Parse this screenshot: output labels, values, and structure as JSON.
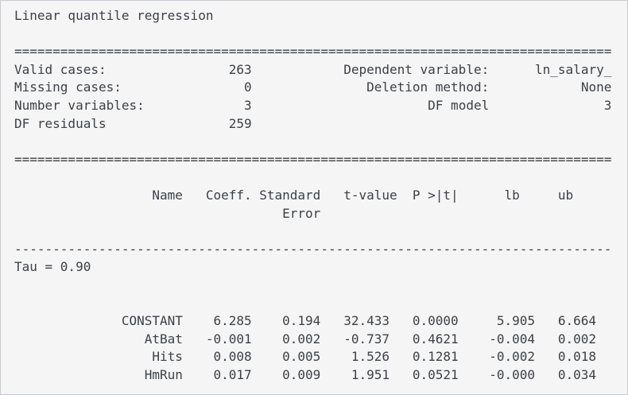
{
  "report": {
    "title": "Linear quantile regression",
    "dividers": {
      "equals": "==============================================================================",
      "dashes": "------------------------------------------------------------------------------"
    },
    "summary": {
      "rows": [
        {
          "left_label": "Valid cases:",
          "left_value": "263",
          "right_label": "Dependent variable:",
          "right_value": "ln_salary_"
        },
        {
          "left_label": "Missing cases:",
          "left_value": "0",
          "right_label": "Deletion method:",
          "right_value": "None"
        },
        {
          "left_label": "Number variables:",
          "left_value": "3",
          "right_label": "DF model",
          "right_value": "3"
        },
        {
          "left_label": "DF residuals",
          "left_value": "259",
          "right_label": "",
          "right_value": ""
        }
      ]
    },
    "coefficients": {
      "headers": {
        "name": "Name",
        "coeff": "Coeff.",
        "std_error_line1": "Standard",
        "std_error_line2": "Error",
        "t_value": "t-value",
        "p_value": "P >|t|",
        "lb": "lb",
        "ub": "ub"
      },
      "tau_label": "Tau = 0.90",
      "rows": [
        {
          "name": "CONSTANT",
          "coeff": "6.285",
          "std_error": "0.194",
          "t_value": "32.433",
          "p_value": "0.0000",
          "lb": "5.905",
          "ub": "6.664"
        },
        {
          "name": "AtBat",
          "coeff": "-0.001",
          "std_error": "0.002",
          "t_value": "-0.737",
          "p_value": "0.4621",
          "lb": "-0.004",
          "ub": "0.002"
        },
        {
          "name": "Hits",
          "coeff": "0.008",
          "std_error": "0.005",
          "t_value": "1.526",
          "p_value": "0.1281",
          "lb": "-0.002",
          "ub": "0.018"
        },
        {
          "name": "HmRun",
          "coeff": "0.017",
          "std_error": "0.009",
          "t_value": "1.951",
          "p_value": "0.0521",
          "lb": "-0.000",
          "ub": "0.034"
        }
      ]
    },
    "colors": {
      "background": "#f5f5f6",
      "border": "#c9cbce",
      "text": "#3d4145"
    }
  }
}
